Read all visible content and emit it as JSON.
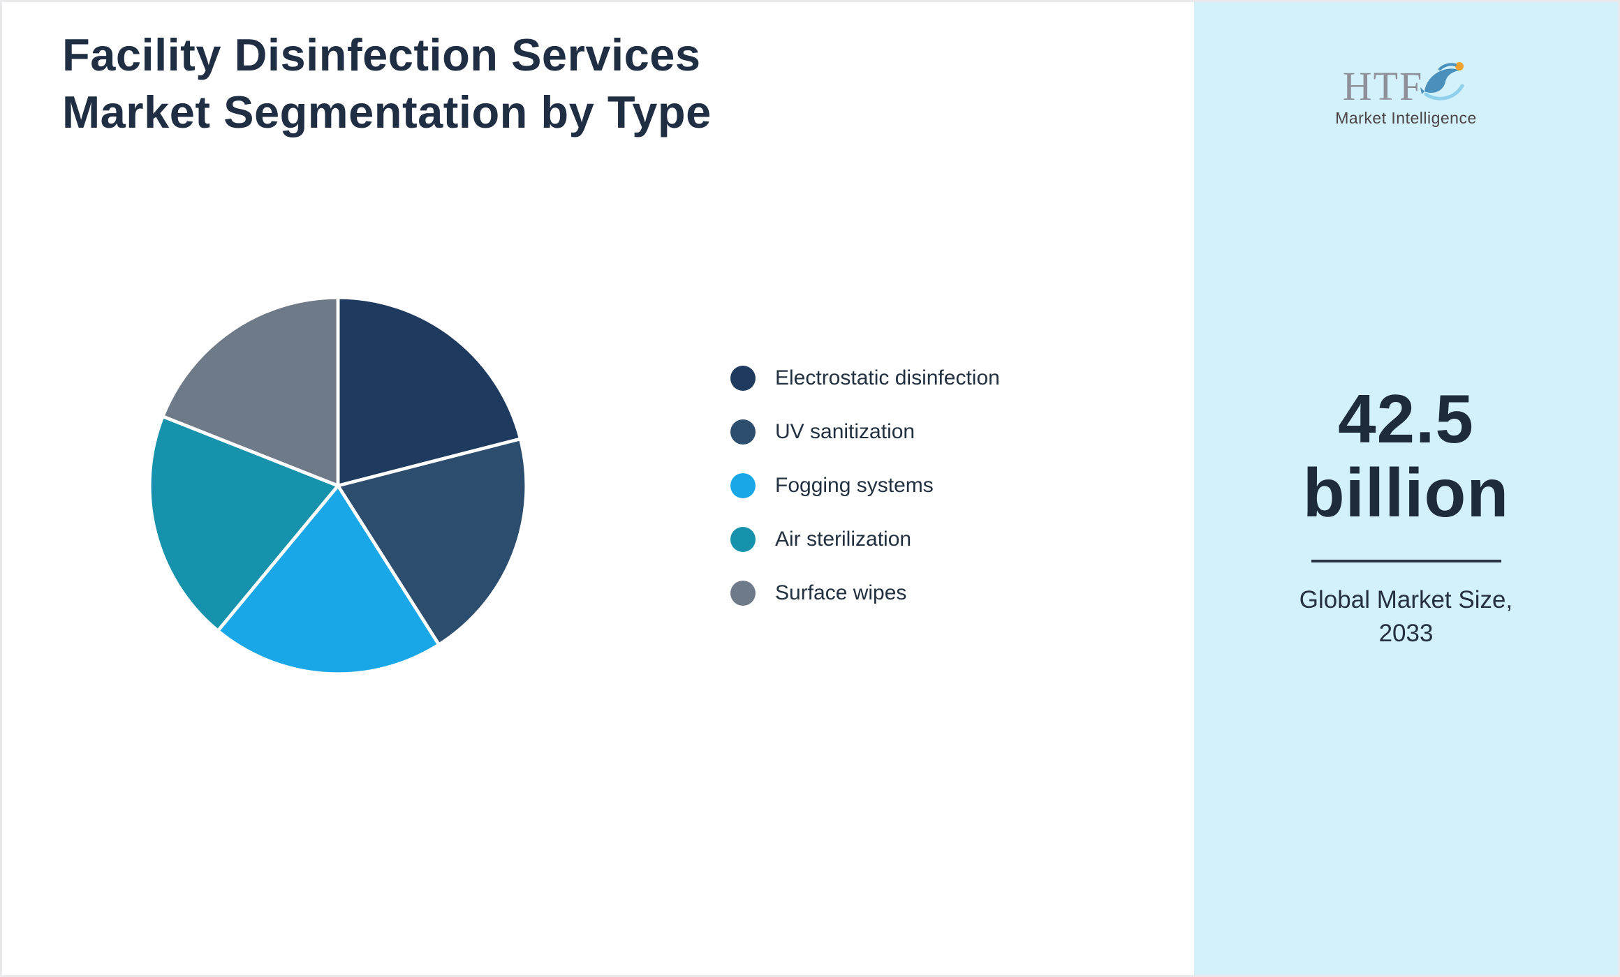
{
  "title": {
    "line1": "Facility Disinfection Services",
    "line2": "Market Segmentation by Type"
  },
  "logo": {
    "text": "HTF",
    "subtext": "Market Intelligence"
  },
  "sidebar": {
    "value_line1": "42.5",
    "value_line2": "billion",
    "caption_line1": "Global Market Size,",
    "caption_line2": "2033"
  },
  "chart_data": {
    "type": "pie",
    "title": "Facility Disinfection Services Market Segmentation by Type",
    "labels": [
      "Electrostatic disinfection",
      "UV sanitization",
      "Fogging systems",
      "Air sterilization",
      "Surface wipes"
    ],
    "values": [
      21,
      20,
      20,
      20,
      19
    ],
    "colors": [
      "#1f3a5f",
      "#2d4d6e",
      "#1aa7e8",
      "#1792ad",
      "#6f7a88"
    ],
    "unit": "percent",
    "start_angle": "top",
    "direction": "clockwise",
    "legend_position": "right",
    "slice_gap_color": "#ffffff"
  },
  "colors": {
    "panel_bg": "#d3f1fa",
    "title_text": "#1f2e43",
    "metric_text": "#1e2b3a",
    "legend_text": "#22303f",
    "logo_text": "#8f8f99"
  }
}
